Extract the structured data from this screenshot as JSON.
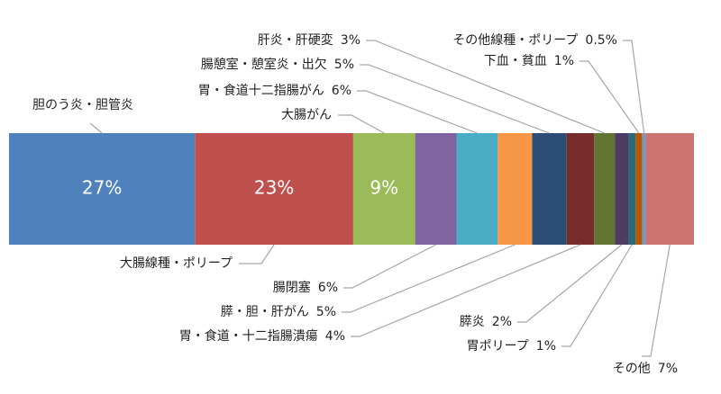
{
  "chart_data": {
    "type": "stacked-bar-100",
    "categories": [
      "胆のう炎・胆管炎",
      "大腸線種・ポリープ",
      "大腸がん",
      "腸閉塞",
      "胃・食道十二指腸がん",
      "膵・胆・肝がん",
      "腸憩室・憩室炎・出欠",
      "胃・食道・十二指腸潰瘍",
      "肝炎・肝硬変",
      "膵炎",
      "胃ポリープ",
      "下血・貧血",
      "その他線種・ポリープ",
      "その他"
    ],
    "values": [
      27,
      23,
      9,
      6,
      6,
      5,
      5,
      4,
      3,
      2,
      1,
      1,
      0.5,
      7
    ],
    "value_labels": [
      "27%",
      "23%",
      "9%",
      "6%",
      "6%",
      "5%",
      "5%",
      "4%",
      "3%",
      "2%",
      "1%",
      "1%",
      "0.5%",
      "7%"
    ],
    "colors": [
      "#4f81bd",
      "#c0504d",
      "#9bbb59",
      "#8064a2",
      "#4bacc6",
      "#f79646",
      "#2c4d75",
      "#772c2a",
      "#5f7530",
      "#4d3b62",
      "#276a7c",
      "#b65708",
      "#729aca",
      "#cd7371"
    ]
  }
}
